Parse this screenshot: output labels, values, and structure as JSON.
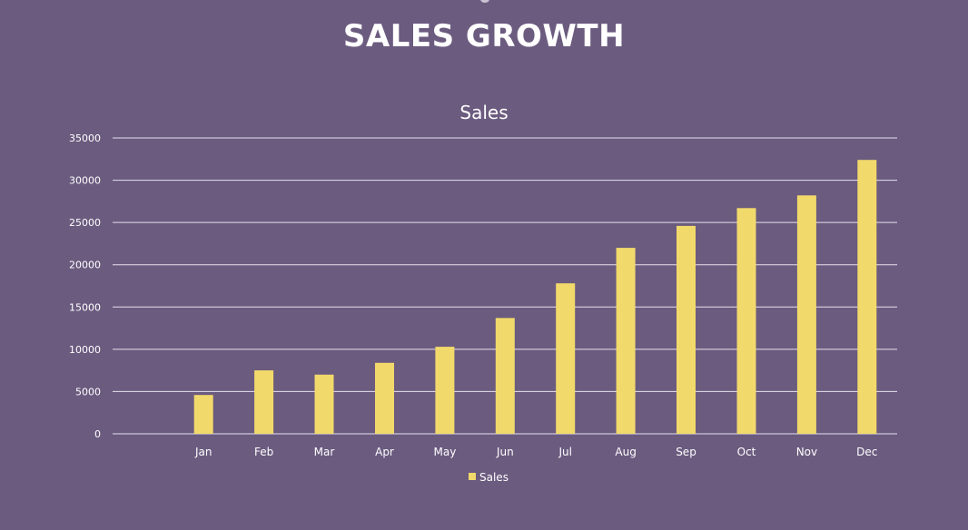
{
  "page": {
    "title": "SALES GROWTH"
  },
  "chart_data": {
    "type": "bar",
    "title": "Sales",
    "xlabel": "",
    "ylabel": "",
    "categories": [
      "Jan",
      "Feb",
      "Mar",
      "Apr",
      "May",
      "Jun",
      "Jul",
      "Aug",
      "Sep",
      "Oct",
      "Nov",
      "Dec"
    ],
    "series": [
      {
        "name": "Sales",
        "values": [
          4600,
          7500,
          7000,
          8400,
          10300,
          13700,
          17800,
          22000,
          24600,
          26700,
          28200,
          32400
        ],
        "color": "#f2d96b"
      }
    ],
    "ylim": [
      0,
      35000
    ],
    "yticks": [
      "0",
      "5000",
      "10000",
      "15000",
      "20000",
      "25000",
      "30000",
      "35000"
    ],
    "grid": true,
    "legend": "bottom"
  },
  "colors": {
    "background": "#6b5b7f",
    "bar": "#f2d96b",
    "text": "#ffffff",
    "gridline": "#e6e0ee"
  }
}
